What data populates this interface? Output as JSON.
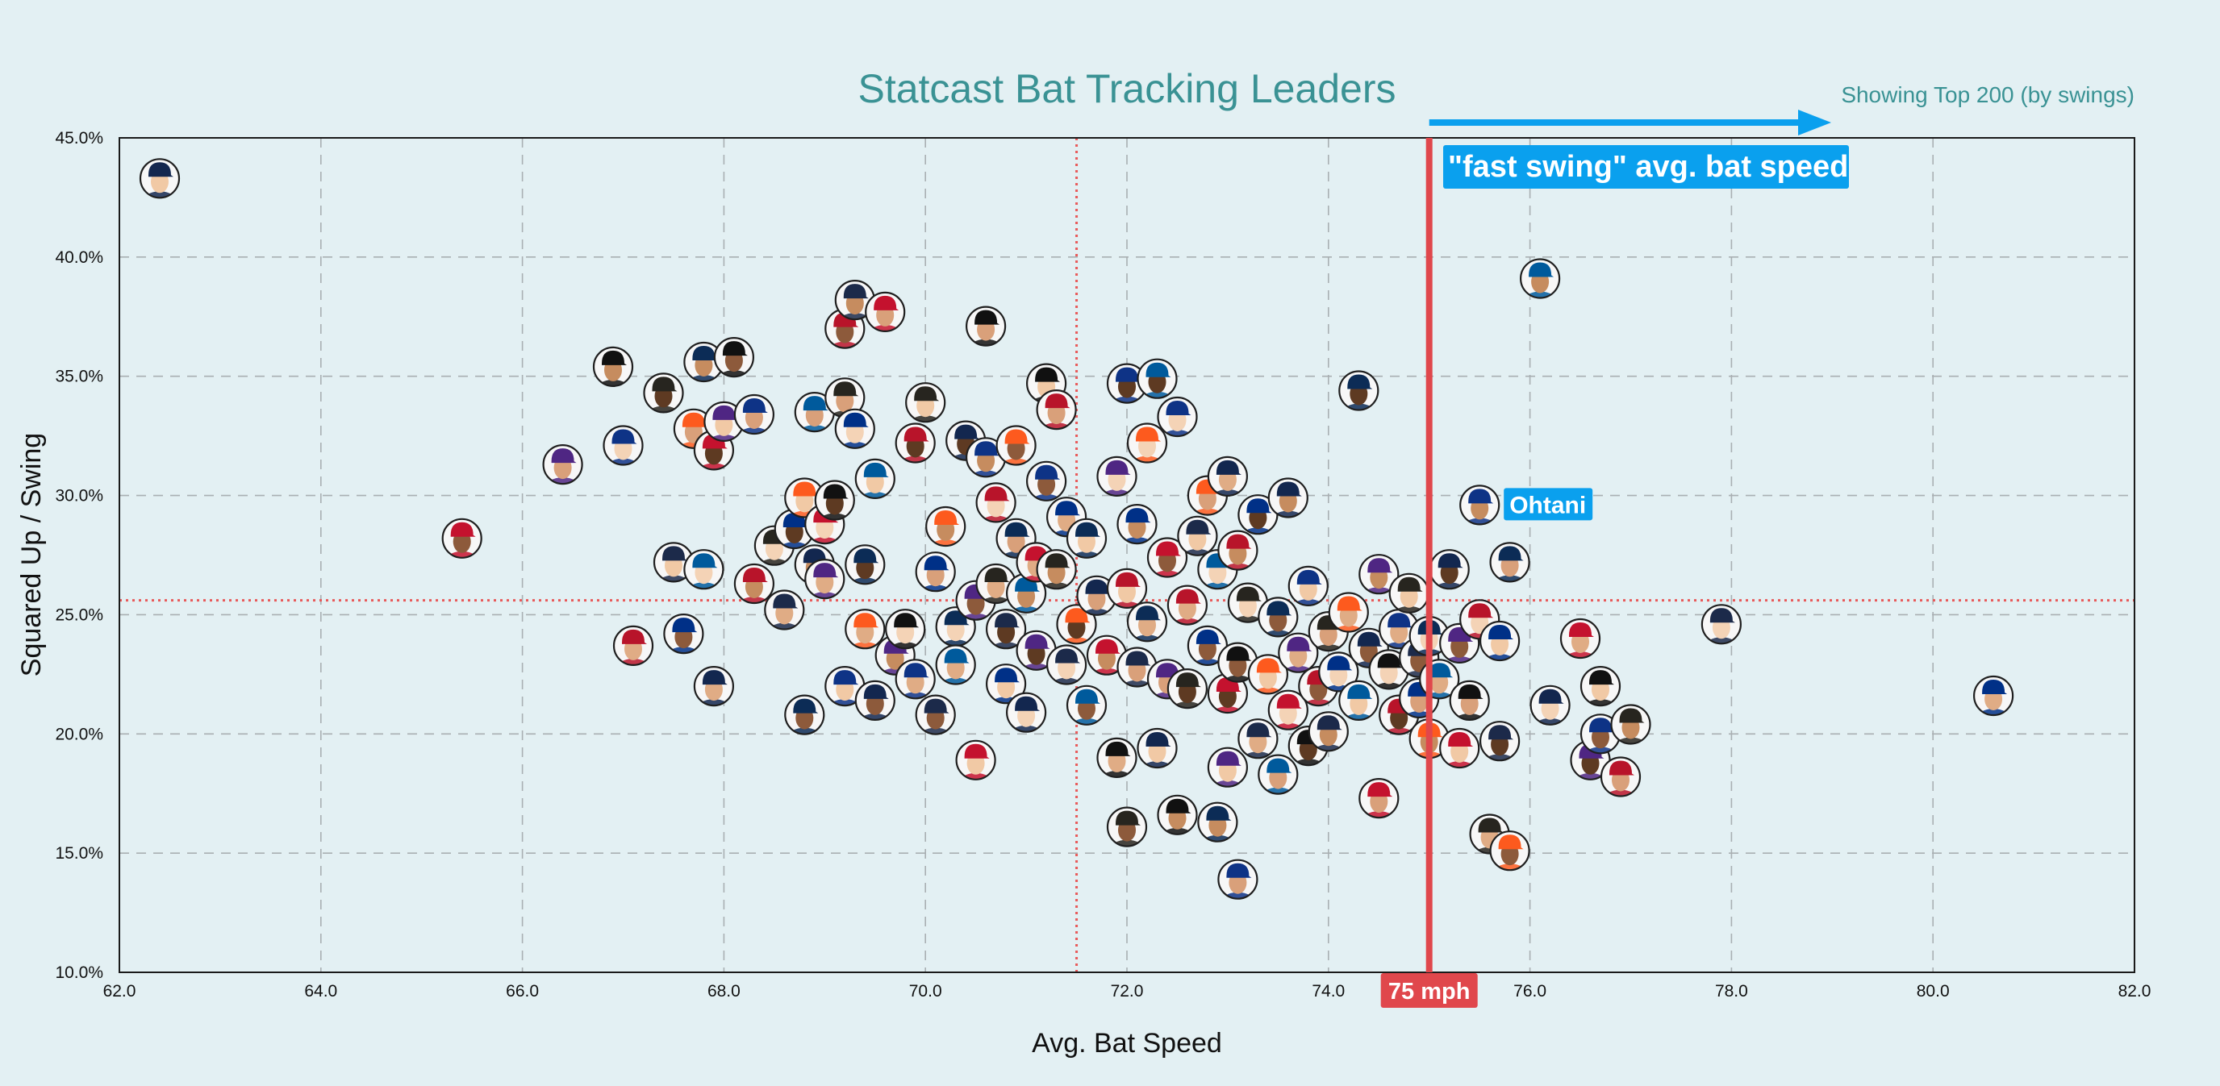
{
  "chart_data": {
    "type": "scatter",
    "title": "Statcast Bat Tracking Leaders",
    "subtitle": "Showing Top 200 (by swings)",
    "xlabel": "Avg. Bat Speed",
    "ylabel": "Squared Up / Swing",
    "xlim": [
      62.0,
      82.0
    ],
    "ylim": [
      10.0,
      45.0
    ],
    "x_ticks": [
      "62.0",
      "64.0",
      "66.0",
      "68.0",
      "70.0",
      "72.0",
      "74.0",
      "76.0",
      "78.0",
      "80.0",
      "82.0"
    ],
    "y_ticks": [
      "10.0%",
      "15.0%",
      "20.0%",
      "25.0%",
      "30.0%",
      "35.0%",
      "40.0%",
      "45.0%"
    ],
    "grid": true,
    "avg_x": 71.5,
    "avg_y": 25.6,
    "threshold": {
      "x": 75,
      "label": "75 mph",
      "color": "#e0474c"
    },
    "fast_swing_label": "\"fast swing\" avg. bat speed",
    "highlight": {
      "label": "Ohtani",
      "x": 75.5,
      "y": 29.6
    },
    "accent_color": "#0aa0ee",
    "title_color": "#3a9294",
    "points": [
      [
        62.4,
        43.3
      ],
      [
        65.4,
        28.2
      ],
      [
        66.4,
        31.3
      ],
      [
        66.9,
        35.4
      ],
      [
        67.0,
        32.1
      ],
      [
        67.1,
        23.7
      ],
      [
        67.4,
        34.3
      ],
      [
        67.5,
        27.2
      ],
      [
        67.6,
        24.2
      ],
      [
        67.7,
        32.8
      ],
      [
        67.8,
        35.6
      ],
      [
        67.8,
        26.9
      ],
      [
        67.9,
        22.0
      ],
      [
        67.9,
        31.9
      ],
      [
        68.0,
        33.1
      ],
      [
        68.1,
        35.8
      ],
      [
        68.3,
        33.4
      ],
      [
        68.3,
        26.3
      ],
      [
        68.5,
        27.9
      ],
      [
        68.6,
        25.2
      ],
      [
        68.7,
        28.6
      ],
      [
        68.8,
        29.9
      ],
      [
        68.8,
        20.8
      ],
      [
        68.9,
        33.5
      ],
      [
        68.9,
        27.1
      ],
      [
        69.0,
        28.8
      ],
      [
        69.0,
        26.5
      ],
      [
        69.1,
        29.8
      ],
      [
        69.2,
        22.0
      ],
      [
        69.2,
        37.0
      ],
      [
        69.2,
        34.1
      ],
      [
        69.3,
        38.2
      ],
      [
        69.3,
        32.8
      ],
      [
        69.4,
        24.4
      ],
      [
        69.4,
        27.1
      ],
      [
        69.5,
        30.7
      ],
      [
        69.5,
        21.4
      ],
      [
        69.6,
        37.7
      ],
      [
        69.7,
        23.3
      ],
      [
        69.8,
        24.4
      ],
      [
        69.9,
        22.3
      ],
      [
        69.9,
        32.2
      ],
      [
        70.0,
        33.9
      ],
      [
        70.1,
        20.8
      ],
      [
        70.1,
        26.8
      ],
      [
        70.2,
        28.7
      ],
      [
        70.3,
        24.5
      ],
      [
        70.3,
        22.9
      ],
      [
        70.4,
        32.3
      ],
      [
        70.5,
        18.9
      ],
      [
        70.5,
        25.6
      ],
      [
        70.6,
        37.1
      ],
      [
        70.6,
        31.6
      ],
      [
        70.7,
        29.7
      ],
      [
        70.7,
        26.3
      ],
      [
        70.8,
        24.4
      ],
      [
        70.8,
        22.1
      ],
      [
        70.9,
        32.1
      ],
      [
        70.9,
        28.2
      ],
      [
        71.0,
        25.9
      ],
      [
        71.0,
        20.9
      ],
      [
        71.1,
        27.2
      ],
      [
        71.1,
        23.5
      ],
      [
        71.2,
        34.7
      ],
      [
        71.2,
        30.6
      ],
      [
        71.3,
        33.6
      ],
      [
        71.3,
        26.9
      ],
      [
        71.4,
        22.9
      ],
      [
        71.4,
        29.1
      ],
      [
        71.5,
        24.6
      ],
      [
        71.6,
        28.2
      ],
      [
        71.6,
        21.2
      ],
      [
        71.7,
        25.8
      ],
      [
        71.8,
        23.3
      ],
      [
        71.9,
        30.8
      ],
      [
        71.9,
        19.0
      ],
      [
        72.0,
        34.7
      ],
      [
        72.0,
        26.1
      ],
      [
        72.0,
        16.1
      ],
      [
        72.1,
        22.8
      ],
      [
        72.1,
        28.8
      ],
      [
        72.2,
        32.2
      ],
      [
        72.2,
        24.7
      ],
      [
        72.3,
        34.9
      ],
      [
        72.3,
        19.4
      ],
      [
        72.4,
        27.4
      ],
      [
        72.4,
        22.3
      ],
      [
        72.5,
        16.6
      ],
      [
        72.5,
        33.3
      ],
      [
        72.6,
        25.4
      ],
      [
        72.6,
        21.9
      ],
      [
        72.7,
        28.3
      ],
      [
        72.8,
        23.7
      ],
      [
        72.8,
        30.0
      ],
      [
        72.9,
        16.3
      ],
      [
        72.9,
        26.9
      ],
      [
        73.0,
        30.8
      ],
      [
        73.0,
        21.7
      ],
      [
        73.0,
        18.6
      ],
      [
        73.1,
        23.0
      ],
      [
        73.1,
        13.9
      ],
      [
        73.1,
        27.7
      ],
      [
        73.2,
        25.5
      ],
      [
        73.3,
        19.8
      ],
      [
        73.3,
        29.2
      ],
      [
        73.4,
        22.5
      ],
      [
        73.5,
        24.9
      ],
      [
        73.5,
        18.3
      ],
      [
        73.6,
        29.9
      ],
      [
        73.6,
        21.0
      ],
      [
        73.7,
        23.4
      ],
      [
        73.8,
        19.5
      ],
      [
        73.8,
        26.2
      ],
      [
        73.9,
        22.0
      ],
      [
        74.0,
        24.3
      ],
      [
        74.0,
        20.1
      ],
      [
        74.1,
        22.6
      ],
      [
        74.2,
        25.1
      ],
      [
        74.3,
        34.4
      ],
      [
        74.3,
        21.4
      ],
      [
        74.4,
        23.6
      ],
      [
        74.5,
        17.3
      ],
      [
        74.5,
        26.7
      ],
      [
        74.6,
        22.7
      ],
      [
        74.7,
        24.4
      ],
      [
        74.7,
        20.8
      ],
      [
        74.8,
        25.9
      ],
      [
        74.9,
        23.2
      ],
      [
        74.9,
        21.5
      ],
      [
        75.0,
        19.8
      ],
      [
        75.0,
        24.1
      ],
      [
        75.1,
        22.3
      ],
      [
        75.2,
        26.9
      ],
      [
        75.3,
        19.4
      ],
      [
        75.3,
        23.8
      ],
      [
        75.4,
        21.4
      ],
      [
        75.5,
        29.6
      ],
      [
        75.5,
        24.8
      ],
      [
        75.6,
        15.8
      ],
      [
        75.7,
        19.7
      ],
      [
        75.7,
        23.9
      ],
      [
        75.8,
        15.1
      ],
      [
        75.8,
        27.2
      ],
      [
        76.1,
        39.1
      ],
      [
        76.2,
        21.2
      ],
      [
        76.5,
        24.0
      ],
      [
        76.6,
        18.9
      ],
      [
        76.7,
        22.0
      ],
      [
        76.7,
        20.0
      ],
      [
        76.9,
        18.2
      ],
      [
        77.0,
        20.4
      ],
      [
        77.9,
        24.6
      ],
      [
        80.6,
        21.6
      ]
    ]
  }
}
